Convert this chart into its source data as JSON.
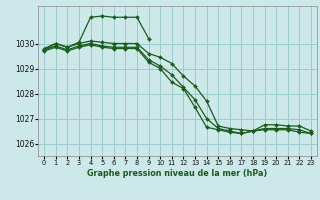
{
  "bg_color": "#cce8e8",
  "grid_color": "#99cccc",
  "line_color": "#1a5c1a",
  "title": "Graphe pression niveau de la mer (hPa)",
  "ylim": [
    1025.5,
    1031.5
  ],
  "xlim": [
    -0.5,
    23.5
  ],
  "xticks": [
    0,
    1,
    2,
    3,
    4,
    5,
    6,
    7,
    8,
    9,
    10,
    11,
    12,
    13,
    14,
    15,
    16,
    17,
    18,
    19,
    20,
    21,
    22,
    23
  ],
  "yticks": [
    1026,
    1027,
    1028,
    1029,
    1030
  ],
  "series1_x": [
    0,
    1,
    2,
    3,
    4,
    5,
    6,
    7,
    8,
    9
  ],
  "series1_y": [
    1029.8,
    1030.0,
    1029.85,
    1030.05,
    1031.05,
    1031.1,
    1031.05,
    1031.05,
    1031.05,
    1030.2
  ],
  "series2_x": [
    0,
    1,
    2,
    3,
    4,
    5,
    6,
    7,
    8,
    9,
    10,
    11,
    12,
    13,
    14,
    15,
    16,
    17,
    18,
    19,
    20,
    21,
    22,
    23
  ],
  "series2_y": [
    1029.75,
    1030.0,
    1029.85,
    1030.0,
    1030.1,
    1030.05,
    1030.0,
    1030.0,
    1030.0,
    1029.6,
    1029.45,
    1029.2,
    1028.7,
    1028.3,
    1027.7,
    1026.7,
    1026.6,
    1026.55,
    1026.5,
    1026.75,
    1026.75,
    1026.7,
    1026.7,
    1026.5
  ],
  "series3_x": [
    0,
    1,
    2,
    3,
    4,
    5,
    6,
    7,
    8,
    9,
    10,
    11,
    12,
    13,
    14,
    15,
    16,
    17,
    18,
    19,
    20,
    21,
    22,
    23
  ],
  "series3_y": [
    1029.75,
    1029.9,
    1029.75,
    1029.9,
    1030.0,
    1029.9,
    1029.85,
    1029.85,
    1029.85,
    1029.35,
    1029.1,
    1028.75,
    1028.25,
    1027.75,
    1027.0,
    1026.6,
    1026.5,
    1026.4,
    1026.5,
    1026.6,
    1026.6,
    1026.6,
    1026.55,
    1026.4
  ],
  "series4_x": [
    0,
    1,
    2,
    3,
    4,
    5,
    6,
    7,
    8,
    9,
    10,
    11,
    12,
    13,
    14,
    15,
    16,
    17,
    18,
    19,
    20,
    21,
    22,
    23
  ],
  "series4_y": [
    1029.7,
    1029.85,
    1029.7,
    1029.85,
    1029.95,
    1029.85,
    1029.8,
    1029.8,
    1029.8,
    1029.25,
    1029.0,
    1028.45,
    1028.2,
    1027.45,
    1026.65,
    1026.55,
    1026.45,
    1026.4,
    1026.5,
    1026.55,
    1026.55,
    1026.55,
    1026.45,
    1026.4
  ]
}
